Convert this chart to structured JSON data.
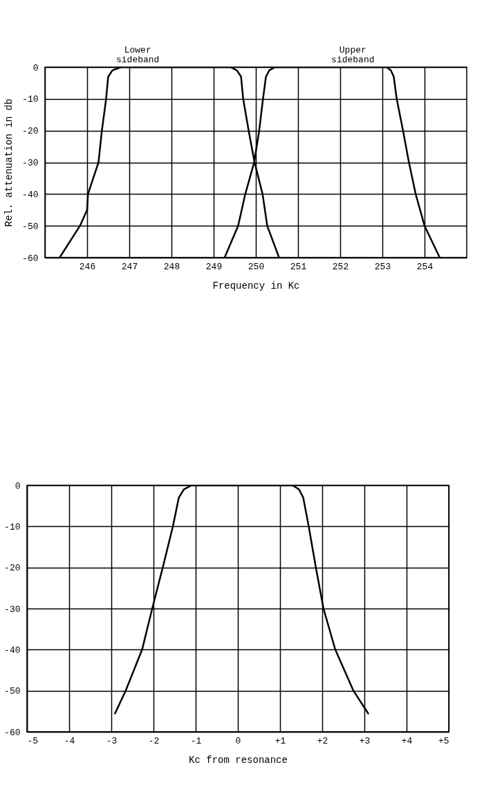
{
  "chart_data": [
    {
      "type": "line",
      "xlabel": "Frequency in Kc",
      "ylabel": "Rel. attenuation in db",
      "xlim": [
        245,
        255
      ],
      "ylim": [
        -60,
        0
      ],
      "xticks": [
        246,
        247,
        248,
        249,
        250,
        251,
        252,
        253,
        254
      ],
      "yticks": [
        0,
        -10,
        -20,
        -30,
        -40,
        -50,
        -60
      ],
      "grid": true,
      "line_style": "solid",
      "annotations": [
        {
          "text": "Lower sideband",
          "x": 247.2,
          "y": 0
        },
        {
          "text": "Upper sideband",
          "x": 252.3,
          "y": 0
        }
      ],
      "series": [
        {
          "color": "#000000",
          "x": [
            245.35,
            245.83,
            246.0,
            246.02,
            246.27,
            246.35,
            246.45,
            246.5,
            246.6,
            246.8,
            249.4,
            249.55,
            249.65,
            249.7,
            249.83,
            249.97,
            250.16,
            250.27,
            250.55
          ],
          "values": [
            -60,
            -50,
            -45,
            -40,
            -30,
            -20,
            -10,
            -3,
            -1,
            0,
            0,
            -1,
            -3,
            -10,
            -20,
            -30,
            -40,
            -50,
            -60
          ]
        },
        {
          "color": "#000000",
          "x": [
            249.26,
            249.58,
            249.75,
            249.96,
            250.08,
            250.17,
            250.24,
            250.32,
            250.45,
            253.1,
            253.2,
            253.27,
            253.34,
            253.49,
            253.63,
            253.79,
            254.0,
            254.36
          ],
          "values": [
            -60,
            -50,
            -40,
            -30,
            -20,
            -10,
            -3,
            -1,
            0,
            0,
            -1,
            -3,
            -10,
            -20,
            -30,
            -40,
            -50,
            -60
          ]
        }
      ]
    },
    {
      "type": "line",
      "xlabel": "Kc from resonance",
      "xlim": [
        -5,
        5
      ],
      "ylim": [
        -60,
        0
      ],
      "xticks": [
        -5,
        -4,
        -3,
        -2,
        -1,
        0,
        {
          "value": 1,
          "label": "+1"
        },
        {
          "value": 2,
          "label": "+2"
        },
        {
          "value": 3,
          "label": "+3"
        },
        {
          "value": 4,
          "label": "+4"
        },
        {
          "value": 5,
          "label": "+5"
        }
      ],
      "yticks": [
        0,
        -10,
        -20,
        -30,
        -40,
        -50,
        -60
      ],
      "grid": true,
      "line_style": "solid",
      "series": [
        {
          "color": "#000000",
          "x": [
            -2.92,
            -2.66,
            -2.27,
            -2.03,
            -1.78,
            -1.54,
            -1.4,
            -1.28,
            -1.1,
            1.3,
            1.45,
            1.55,
            1.68,
            1.85,
            2.03,
            2.31,
            2.74,
            3.1
          ],
          "values": [
            -55.7,
            -50,
            -40,
            -30,
            -20,
            -10,
            -3,
            -1,
            0,
            0,
            -1,
            -3,
            -10,
            -20,
            -30,
            -40,
            -50,
            -55.7
          ]
        }
      ]
    }
  ]
}
